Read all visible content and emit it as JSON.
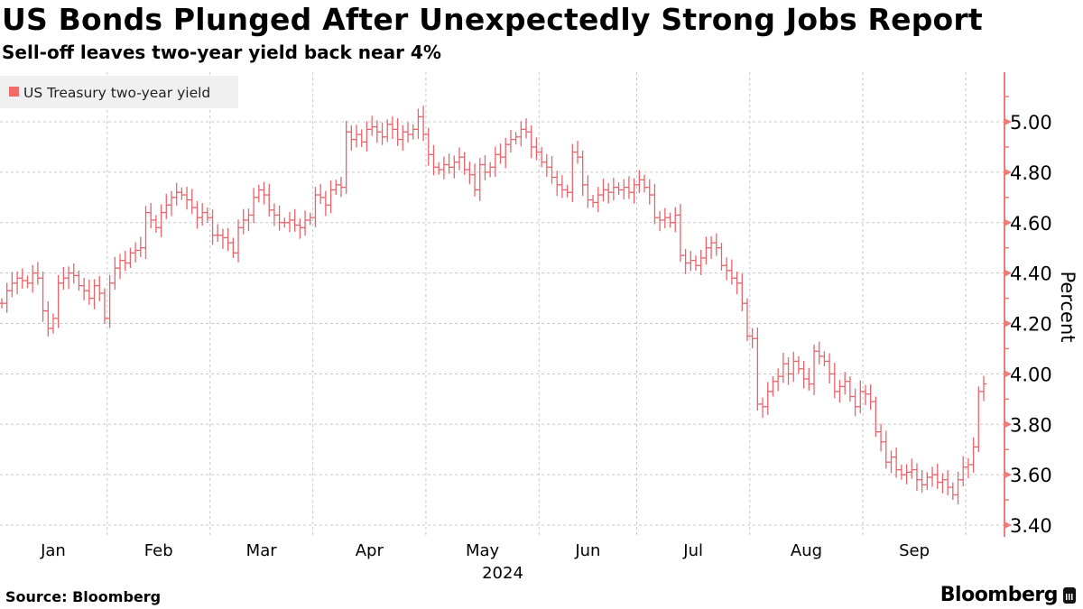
{
  "title": "US Bonds Plunged After Unexpectedly Strong Jobs Report",
  "subtitle": "Sell-off leaves two-year yield back near 4%",
  "source": "Source: Bloomberg",
  "brand": "Bloomberg",
  "colors": {
    "series": "#e8646a",
    "axis": "#f07a7a",
    "grid": "#c8c8c8",
    "legend_bg": "#f0f0f0"
  },
  "chart_data": {
    "type": "bar",
    "style": "ohlc-daily",
    "title": "US Bonds Plunged After Unexpectedly Strong Jobs Report",
    "subtitle": "Sell-off leaves two-year yield back near 4%",
    "legend": [
      "US Treasury two-year yield"
    ],
    "legend_position": "top-left",
    "xlabel": "2024",
    "ylabel": "Percent",
    "ylim": [
      3.35,
      5.2
    ],
    "yticks": [
      "3.40",
      "3.60",
      "3.80",
      "4.00",
      "4.20",
      "4.40",
      "4.60",
      "4.80",
      "5.00"
    ],
    "grid": true,
    "months": [
      {
        "label": "Jan",
        "closes": [
          4.28,
          4.33,
          4.36,
          4.38,
          4.37,
          4.36,
          4.4,
          4.38,
          4.25,
          4.18,
          4.22,
          4.36,
          4.38,
          4.4,
          4.39,
          4.35,
          4.33,
          4.3,
          4.35,
          4.32,
          4.22
        ]
      },
      {
        "label": "Feb",
        "closes": [
          4.36,
          4.42,
          4.45,
          4.44,
          4.48,
          4.49,
          4.5,
          4.64,
          4.61,
          4.58,
          4.64,
          4.67,
          4.7,
          4.72,
          4.71,
          4.69,
          4.66,
          4.62,
          4.64,
          4.62
        ]
      },
      {
        "label": "Mar",
        "closes": [
          4.55,
          4.55,
          4.54,
          4.52,
          4.48,
          4.58,
          4.61,
          4.63,
          4.7,
          4.73,
          4.71,
          4.65,
          4.63,
          4.6,
          4.6,
          4.61,
          4.59,
          4.58,
          4.61,
          4.62
        ]
      },
      {
        "label": "Apr",
        "closes": [
          4.71,
          4.7,
          4.67,
          4.73,
          4.75,
          4.74,
          4.96,
          4.93,
          4.95,
          4.92,
          4.97,
          4.98,
          4.96,
          4.94,
          4.99,
          4.97,
          4.93,
          4.96,
          4.95,
          4.97,
          5.02,
          4.95
        ]
      },
      {
        "label": "May",
        "closes": [
          4.87,
          4.82,
          4.81,
          4.83,
          4.82,
          4.84,
          4.86,
          4.81,
          4.79,
          4.73,
          4.83,
          4.8,
          4.82,
          4.87,
          4.86,
          4.91,
          4.93,
          4.94,
          4.97,
          4.96,
          4.9,
          4.88
        ]
      },
      {
        "label": "Jun",
        "closes": [
          4.84,
          4.82,
          4.78,
          4.75,
          4.73,
          4.72,
          4.88,
          4.86,
          4.75,
          4.69,
          4.68,
          4.71,
          4.73,
          4.72,
          4.74,
          4.73,
          4.74,
          4.72,
          4.75
        ]
      },
      {
        "label": "Jul",
        "closes": [
          4.77,
          4.74,
          4.71,
          4.62,
          4.61,
          4.62,
          4.6,
          4.63,
          4.47,
          4.44,
          4.45,
          4.43,
          4.46,
          4.5,
          4.52,
          4.5,
          4.43,
          4.41,
          4.38,
          4.36,
          4.28,
          4.15
        ]
      },
      {
        "label": "Aug",
        "closes": [
          4.14,
          3.88,
          3.87,
          3.93,
          3.97,
          3.99,
          4.04,
          4.0,
          4.05,
          4.02,
          3.98,
          3.96,
          4.09,
          4.07,
          4.05,
          4.0,
          3.93,
          3.95,
          3.97,
          3.91,
          3.87,
          3.93
        ]
      },
      {
        "label": "Sep",
        "closes": [
          3.92,
          3.89,
          3.77,
          3.73,
          3.65,
          3.67,
          3.62,
          3.6,
          3.61,
          3.62,
          3.58,
          3.56,
          3.59,
          3.6,
          3.57,
          3.58,
          3.55,
          3.52,
          3.58,
          3.63
        ]
      },
      {
        "label": "",
        "closes": [
          3.64,
          3.71,
          3.93,
          3.96
        ]
      }
    ]
  }
}
